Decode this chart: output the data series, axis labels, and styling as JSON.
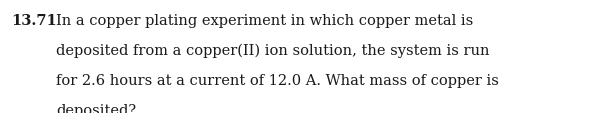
{
  "number": "13.71",
  "line1": " In a copper plating experiment in which copper metal is",
  "lines": [
    "deposited from a copper(II) ion solution, the system is run",
    "for 2.6 hours at a current of 12.0 A. What mass of copper is",
    "deposited?"
  ],
  "indent": "        ",
  "font_size": 10.5,
  "font_family": "DejaVu Serif",
  "text_color": "#1a1a1a",
  "background_color": "#ffffff",
  "fig_width": 6.09,
  "fig_height": 1.14,
  "dpi": 100
}
